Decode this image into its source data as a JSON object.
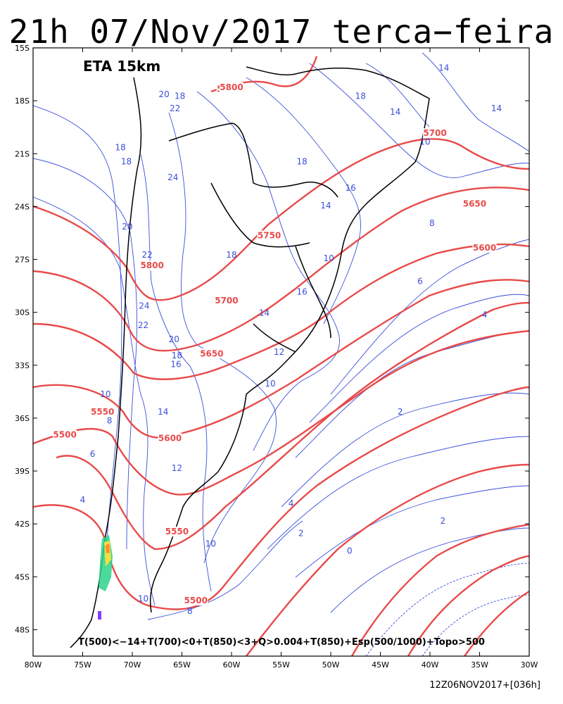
{
  "title": "21h 07/Nov/2017 terca−feira",
  "model_label": "ETA 15km",
  "legend_text": "T(500)<−14+T(700)<0+T(850)<3+Q>0.004+T(850)+Esp(500/1000)+Topo>500",
  "run_label": "12Z06NOV2017+[036h]",
  "lat_labels": [
    "15S",
    "18S",
    "21S",
    "24S",
    "27S",
    "30S",
    "33S",
    "36S",
    "39S",
    "42S",
    "45S",
    "48S"
  ],
  "lon_labels": [
    "80W",
    "75W",
    "70W",
    "65W",
    "60W",
    "55W",
    "50W",
    "45W",
    "40W",
    "35W",
    "30W"
  ],
  "thickness_labels": [
    {
      "text": "5800",
      "lon": -60.3,
      "lat": -17.5
    },
    {
      "text": "5800",
      "lon": -60.0,
      "lat": -17.4
    },
    {
      "text": "5800",
      "lon": -68.0,
      "lat": -27.5
    },
    {
      "text": "5750",
      "lon": -56.2,
      "lat": -25.8
    },
    {
      "text": "5700",
      "lon": -39.5,
      "lat": -20.0
    },
    {
      "text": "5700",
      "lon": -60.5,
      "lat": -29.5
    },
    {
      "text": "5650",
      "lon": -35.5,
      "lat": -24.0
    },
    {
      "text": "5650",
      "lon": -62.0,
      "lat": -32.5
    },
    {
      "text": "5600",
      "lon": -34.5,
      "lat": -26.5
    },
    {
      "text": "5600",
      "lon": -66.2,
      "lat": -37.3
    },
    {
      "text": "5550",
      "lon": -73.0,
      "lat": -35.8
    },
    {
      "text": "5550",
      "lon": -65.5,
      "lat": -42.6
    },
    {
      "text": "5500",
      "lon": -76.8,
      "lat": -37.1
    },
    {
      "text": "5500",
      "lon": -63.6,
      "lat": -46.5
    }
  ],
  "temp_labels": [
    {
      "text": "20",
      "lon": -66.8,
      "lat": -17.8
    },
    {
      "text": "18",
      "lon": -65.2,
      "lat": -17.9
    },
    {
      "text": "22",
      "lon": -65.7,
      "lat": -18.6
    },
    {
      "text": "18",
      "lon": -71.2,
      "lat": -20.8
    },
    {
      "text": "18",
      "lon": -70.6,
      "lat": -21.6
    },
    {
      "text": "24",
      "lon": -65.9,
      "lat": -22.5
    },
    {
      "text": "20",
      "lon": -70.5,
      "lat": -25.3
    },
    {
      "text": "22",
      "lon": -68.5,
      "lat": -26.9
    },
    {
      "text": "18",
      "lon": -60.0,
      "lat": -26.9
    },
    {
      "text": "24",
      "lon": -68.8,
      "lat": -29.8
    },
    {
      "text": "22",
      "lon": -68.9,
      "lat": -30.9
    },
    {
      "text": "20",
      "lon": -65.8,
      "lat": -31.7
    },
    {
      "text": "18",
      "lon": -65.5,
      "lat": -32.6
    },
    {
      "text": "16",
      "lon": -65.6,
      "lat": -33.1
    },
    {
      "text": "14",
      "lon": -66.9,
      "lat": -35.8
    },
    {
      "text": "12",
      "lon": -65.5,
      "lat": -39.0
    },
    {
      "text": "10",
      "lon": -72.7,
      "lat": -34.8
    },
    {
      "text": "8",
      "lon": -72.3,
      "lat": -36.3
    },
    {
      "text": "6",
      "lon": -74.0,
      "lat": -38.2
    },
    {
      "text": "4",
      "lon": -75.0,
      "lat": -40.8
    },
    {
      "text": "10",
      "lon": -62.1,
      "lat": -43.3
    },
    {
      "text": "10",
      "lon": -68.9,
      "lat": -46.4
    },
    {
      "text": "8",
      "lon": -64.2,
      "lat": -47.1
    },
    {
      "text": "18",
      "lon": -47.0,
      "lat": -17.9
    },
    {
      "text": "18",
      "lon": -52.9,
      "lat": -21.6
    },
    {
      "text": "16",
      "lon": -48.0,
      "lat": -23.1
    },
    {
      "text": "14",
      "lon": -50.5,
      "lat": -24.1
    },
    {
      "text": "14",
      "lon": -43.5,
      "lat": -18.8
    },
    {
      "text": "14",
      "lon": -38.6,
      "lat": -16.3
    },
    {
      "text": "14",
      "lon": -33.3,
      "lat": -18.6
    },
    {
      "text": "10",
      "lon": -40.5,
      "lat": -20.5
    },
    {
      "text": "16",
      "lon": -52.9,
      "lat": -29.0
    },
    {
      "text": "14",
      "lon": -56.7,
      "lat": -30.2
    },
    {
      "text": "12",
      "lon": -55.2,
      "lat": -32.4
    },
    {
      "text": "10",
      "lon": -56.1,
      "lat": -34.2
    },
    {
      "text": "10",
      "lon": -50.2,
      "lat": -27.1
    },
    {
      "text": "8",
      "lon": -39.8,
      "lat": -25.1
    },
    {
      "text": "6",
      "lon": -41.0,
      "lat": -28.4
    },
    {
      "text": "4",
      "lon": -34.5,
      "lat": -30.3
    },
    {
      "text": "2",
      "lon": -43.0,
      "lat": -35.8
    },
    {
      "text": "4",
      "lon": -54.0,
      "lat": -41.0
    },
    {
      "text": "2",
      "lon": -53.0,
      "lat": -42.7
    },
    {
      "text": "2",
      "lon": -38.7,
      "lat": -42.0
    },
    {
      "text": "0",
      "lon": -48.1,
      "lat": -43.7
    }
  ],
  "colors": {
    "thickness": "#e84a4a",
    "temperature": "#3a4fd9",
    "coast": "#000000",
    "frame": "#000000"
  }
}
